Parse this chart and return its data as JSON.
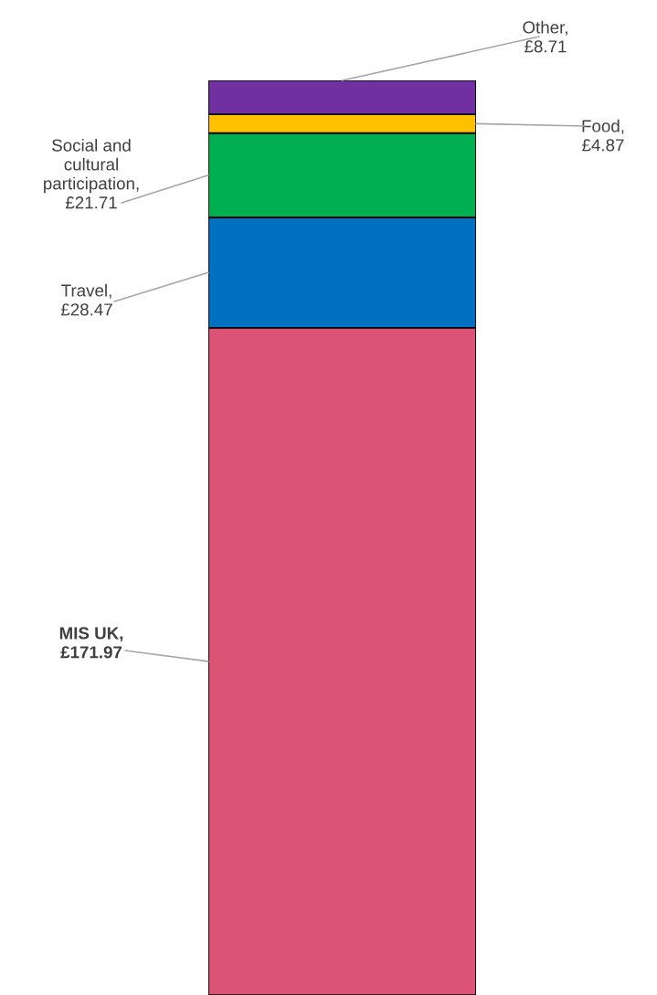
{
  "chart_data": {
    "type": "bar",
    "stacked": true,
    "categories": [
      null
    ],
    "series": [
      {
        "name": "MIS UK,",
        "color": "#dc5475",
        "values": [
          171.97
        ],
        "value_labels": [
          "£171.97"
        ]
      },
      {
        "name": "Travel,",
        "color": "#0070c0",
        "values": [
          28.47
        ],
        "value_labels": [
          "£28.47"
        ]
      },
      {
        "name": "Social and cultural participation,",
        "color": "#00b050",
        "values": [
          21.71
        ],
        "value_labels": [
          "£21.71"
        ]
      },
      {
        "name": "Food,",
        "color": "#ffc000",
        "values": [
          4.87
        ],
        "value_labels": [
          "£4.87"
        ]
      },
      {
        "name": "Other,",
        "color": "#7030a0",
        "values": [
          8.71
        ],
        "value_labels": [
          "£8.71"
        ]
      }
    ]
  }
}
